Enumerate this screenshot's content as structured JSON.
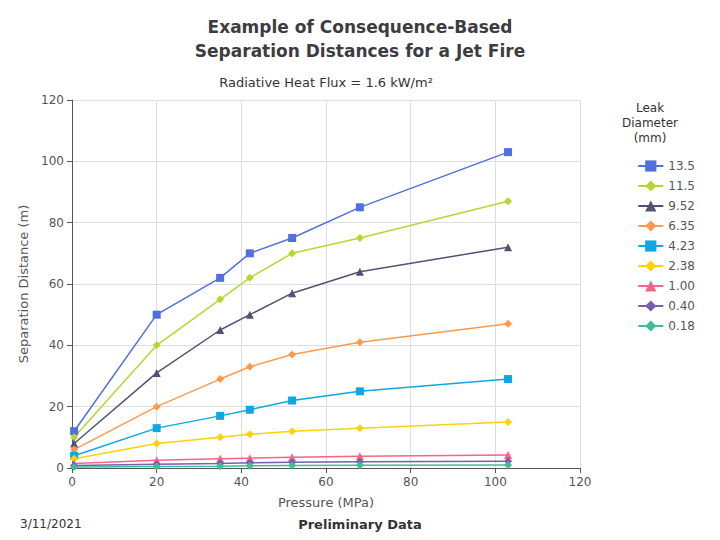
{
  "chart_data": {
    "type": "line",
    "title": "Example of Consequence-Based\nSeparation Distances for a Jet Fire",
    "subtitle": "Radiative Heat Flux = 1.6 kW/m²",
    "x_label": "Pressure (MPa)",
    "y_label": "Separation Distance (m)",
    "legend_title": "Leak\nDiameter\n(mm)",
    "annotations": [
      "3/11/2021",
      "Preliminary Data"
    ],
    "xlim": [
      0,
      120
    ],
    "ylim": [
      0,
      120
    ],
    "xticks": [
      0,
      20,
      40,
      60,
      80,
      100,
      120
    ],
    "yticks": [
      0,
      20,
      40,
      60,
      80,
      100,
      120
    ],
    "grid": true,
    "x": [
      0.5,
      20,
      35,
      42,
      52,
      68,
      103
    ],
    "series": [
      {
        "name": "13.5",
        "marker": "square",
        "values": [
          12,
          50,
          62,
          70,
          75,
          85,
          103
        ]
      },
      {
        "name": "11.5",
        "marker": "diamond",
        "values": [
          10,
          40,
          55,
          62,
          70,
          75,
          87
        ]
      },
      {
        "name": "9.52",
        "marker": "triangle",
        "values": [
          8,
          31,
          45,
          50,
          57,
          64,
          72
        ]
      },
      {
        "name": "6.35",
        "marker": "diamond",
        "values": [
          6,
          20,
          29,
          33,
          37,
          41,
          47
        ]
      },
      {
        "name": "4.23",
        "marker": "square",
        "values": [
          4,
          13,
          17,
          19,
          22,
          25,
          29
        ]
      },
      {
        "name": "2.38",
        "marker": "diamond",
        "values": [
          3,
          8,
          10,
          11,
          12,
          13,
          15
        ]
      },
      {
        "name": "1.00",
        "marker": "triangle",
        "values": [
          1.5,
          2.5,
          3.0,
          3.2,
          3.5,
          3.8,
          4.2
        ]
      },
      {
        "name": "0.40",
        "marker": "diamond",
        "values": [
          0.8,
          1.2,
          1.5,
          1.7,
          1.9,
          2.0,
          2.2
        ]
      },
      {
        "name": "0.18",
        "marker": "diamond",
        "values": [
          0.3,
          0.5,
          0.6,
          0.7,
          0.8,
          0.9,
          1.0
        ]
      }
    ]
  }
}
